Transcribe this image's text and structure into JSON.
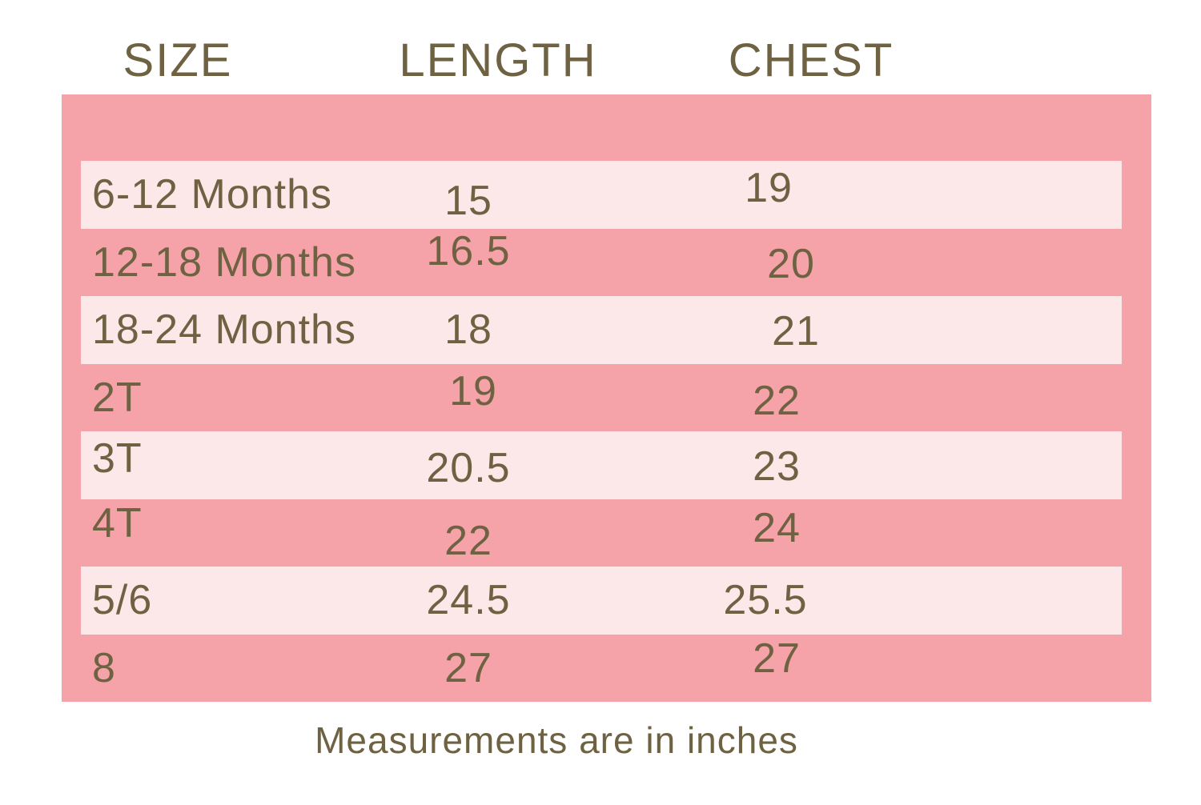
{
  "colors": {
    "background": "#ffffff",
    "panel_pink": "#f5a3a8",
    "stripe_pink": "#fce7e9",
    "text_olive": "#6e6243"
  },
  "header": {
    "columns": [
      "SIZE",
      "LENGTH",
      "CHEST"
    ]
  },
  "rows": [
    {
      "size": "6-12 Months",
      "length": "15",
      "chest": "19"
    },
    {
      "size": "12-18 Months",
      "length": "16.5",
      "chest": "20"
    },
    {
      "size": "18-24 Months",
      "length": "18",
      "chest": "21"
    },
    {
      "size": "2T",
      "length": "19",
      "chest": "22"
    },
    {
      "size": "3T",
      "length": "20.5",
      "chest": "23"
    },
    {
      "size": "4T",
      "length": "22",
      "chest": "24"
    },
    {
      "size": "5/6",
      "length": "24.5",
      "chest": "25.5"
    },
    {
      "size": "8",
      "length": "27",
      "chest": "27"
    }
  ],
  "footer": {
    "note": "Measurements are in inches"
  },
  "chart_data": {
    "type": "table",
    "title": "Children's clothing size chart",
    "columns": [
      "SIZE",
      "LENGTH",
      "CHEST"
    ],
    "units": "inches",
    "rows": [
      [
        "6-12 Months",
        15,
        19
      ],
      [
        "12-18 Months",
        16.5,
        20
      ],
      [
        "18-24 Months",
        18,
        21
      ],
      [
        "2T",
        19,
        22
      ],
      [
        "3T",
        20.5,
        23
      ],
      [
        "4T",
        22,
        24
      ],
      [
        "5/6",
        24.5,
        25.5
      ],
      [
        "8",
        27,
        27
      ]
    ],
    "note": "Measurements are in inches",
    "layout": {
      "stripe_pattern": "alternating light stripes on pink panel, first data row light",
      "grid": false
    }
  }
}
